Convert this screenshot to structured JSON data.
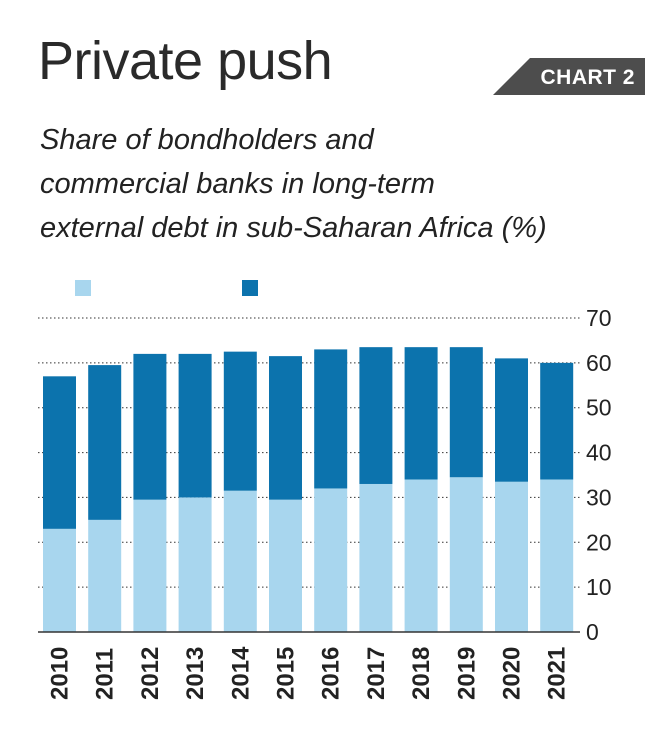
{
  "header": {
    "title": "Private push",
    "tag": "CHART 2",
    "subtitle_lines": [
      "Share of bondholders and",
      "commercial banks in long-term",
      "external debt in sub-Saharan Africa (%)"
    ]
  },
  "colors": {
    "bondholders": "#a8d6ee",
    "commercial_banks": "#0c73ad",
    "tag_bg": "#4d4d4d",
    "gridline": "#333333",
    "text": "#222222"
  },
  "chart_data": {
    "type": "bar",
    "stacked": true,
    "categories": [
      "2010",
      "2011",
      "2012",
      "2013",
      "2014",
      "2015",
      "2016",
      "2017",
      "2018",
      "2019",
      "2020",
      "2021"
    ],
    "series": [
      {
        "values": [
          23,
          25,
          29.5,
          30,
          31.5,
          29.5,
          32,
          33,
          34,
          34.5,
          33.5,
          34
        ]
      },
      {
        "values": [
          34,
          34.5,
          32.5,
          32,
          31,
          32,
          31,
          30.5,
          29.5,
          29,
          27.5,
          26
        ]
      }
    ],
    "ylim": [
      0,
      70
    ],
    "yticks": [
      "0",
      "10",
      "20",
      "30",
      "40",
      "50",
      "60",
      "70"
    ],
    "grid": true,
    "y_axis_side": "right",
    "legend_position": "top-left"
  }
}
